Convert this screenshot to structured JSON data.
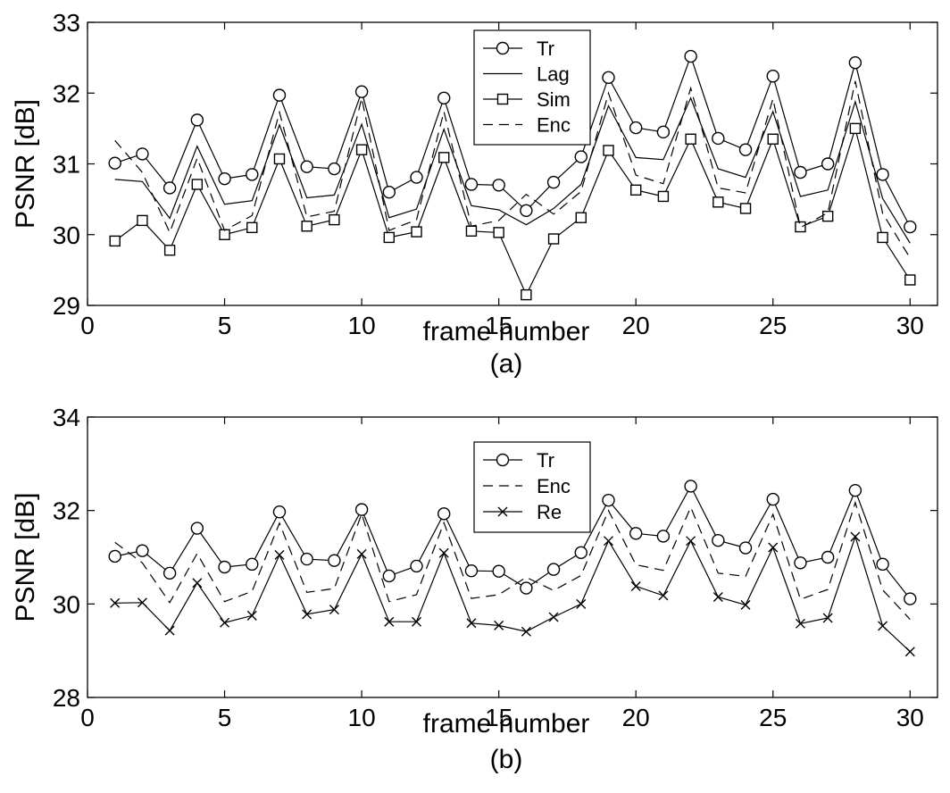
{
  "chart_data": [
    {
      "type": "line",
      "caption": "(a)",
      "xlabel": "frame number",
      "ylabel": "PSNR [dB]",
      "xlim": [
        0,
        31
      ],
      "ylim": [
        29,
        33
      ],
      "xticks": [
        0,
        5,
        10,
        15,
        20,
        25,
        30
      ],
      "yticks": [
        29,
        30,
        31,
        32,
        33
      ],
      "grid": false,
      "legend_position": "top-center",
      "x": [
        1,
        2,
        3,
        4,
        5,
        6,
        7,
        8,
        9,
        10,
        11,
        12,
        13,
        14,
        15,
        16,
        17,
        18,
        19,
        20,
        21,
        22,
        23,
        24,
        25,
        26,
        27,
        28,
        29,
        30
      ],
      "series": [
        {
          "name": "Tr",
          "style": "solid",
          "marker": "circle",
          "values": [
            31.01,
            31.14,
            30.66,
            31.62,
            30.79,
            30.85,
            31.97,
            30.96,
            30.93,
            32.02,
            30.6,
            30.81,
            31.93,
            30.71,
            30.7,
            30.34,
            30.74,
            31.1,
            32.22,
            31.51,
            31.45,
            32.52,
            31.36,
            31.2,
            32.24,
            30.88,
            31.0,
            32.43,
            30.85,
            30.11
          ]
        },
        {
          "name": "Lag",
          "style": "solid",
          "marker": "none",
          "values": [
            30.78,
            30.75,
            30.23,
            31.25,
            30.43,
            30.48,
            31.55,
            30.52,
            30.56,
            31.56,
            30.24,
            30.36,
            31.49,
            30.41,
            30.35,
            30.14,
            30.37,
            30.71,
            31.82,
            31.09,
            31.06,
            31.93,
            30.93,
            30.81,
            31.74,
            30.54,
            30.63,
            31.88,
            30.51,
            29.88
          ]
        },
        {
          "name": "Sim",
          "style": "solid",
          "marker": "square",
          "values": [
            29.91,
            30.2,
            29.78,
            30.71,
            30.0,
            30.1,
            31.07,
            30.12,
            30.21,
            31.2,
            29.96,
            30.04,
            31.09,
            30.05,
            30.03,
            29.15,
            29.94,
            30.24,
            31.19,
            30.63,
            30.54,
            31.35,
            30.46,
            30.37,
            31.35,
            30.11,
            30.26,
            31.5,
            29.96,
            29.36
          ]
        },
        {
          "name": "Enc",
          "style": "dashed",
          "marker": "none",
          "values": [
            31.33,
            30.88,
            30.03,
            31.08,
            30.06,
            30.27,
            31.73,
            30.25,
            30.33,
            31.93,
            30.06,
            30.21,
            31.74,
            30.12,
            30.2,
            30.57,
            30.29,
            30.61,
            32.0,
            30.84,
            30.72,
            32.07,
            30.66,
            30.59,
            31.92,
            30.1,
            30.31,
            32.17,
            30.3,
            29.67
          ]
        }
      ]
    },
    {
      "type": "line",
      "caption": "(b)",
      "xlabel": "frame number",
      "ylabel": "PSNR [dB]",
      "xlim": [
        0,
        31
      ],
      "ylim": [
        28,
        34
      ],
      "xticks": [
        0,
        5,
        10,
        15,
        20,
        25,
        30
      ],
      "yticks": [
        28,
        30,
        32,
        34
      ],
      "grid": false,
      "legend_position": "top-center",
      "x": [
        1,
        2,
        3,
        4,
        5,
        6,
        7,
        8,
        9,
        10,
        11,
        12,
        13,
        14,
        15,
        16,
        17,
        18,
        19,
        20,
        21,
        22,
        23,
        24,
        25,
        26,
        27,
        28,
        29,
        30
      ],
      "series": [
        {
          "name": "Tr",
          "style": "solid",
          "marker": "circle",
          "values": [
            31.02,
            31.14,
            30.66,
            31.62,
            30.79,
            30.85,
            31.97,
            30.96,
            30.93,
            32.02,
            30.6,
            30.81,
            31.93,
            30.71,
            30.7,
            30.34,
            30.74,
            31.1,
            32.22,
            31.51,
            31.45,
            32.52,
            31.36,
            31.2,
            32.24,
            30.88,
            31.0,
            32.43,
            30.85,
            30.11
          ]
        },
        {
          "name": "Enc",
          "style": "dashed",
          "marker": "none",
          "values": [
            31.32,
            30.88,
            30.03,
            31.08,
            30.05,
            30.27,
            31.73,
            30.25,
            30.33,
            31.93,
            30.05,
            30.2,
            31.74,
            30.12,
            30.2,
            30.57,
            30.29,
            30.61,
            32.0,
            30.84,
            30.72,
            32.07,
            30.66,
            30.59,
            31.92,
            30.1,
            30.31,
            32.17,
            30.3,
            29.67
          ]
        },
        {
          "name": "Re",
          "style": "solid",
          "marker": "x",
          "values": [
            30.02,
            30.03,
            29.43,
            30.45,
            29.6,
            29.75,
            31.05,
            29.78,
            29.88,
            31.07,
            29.62,
            29.62,
            31.09,
            29.59,
            29.54,
            29.41,
            29.72,
            30.0,
            31.35,
            30.38,
            30.18,
            31.35,
            30.15,
            29.98,
            31.21,
            29.58,
            29.7,
            31.44,
            29.53,
            28.98
          ]
        }
      ]
    }
  ]
}
